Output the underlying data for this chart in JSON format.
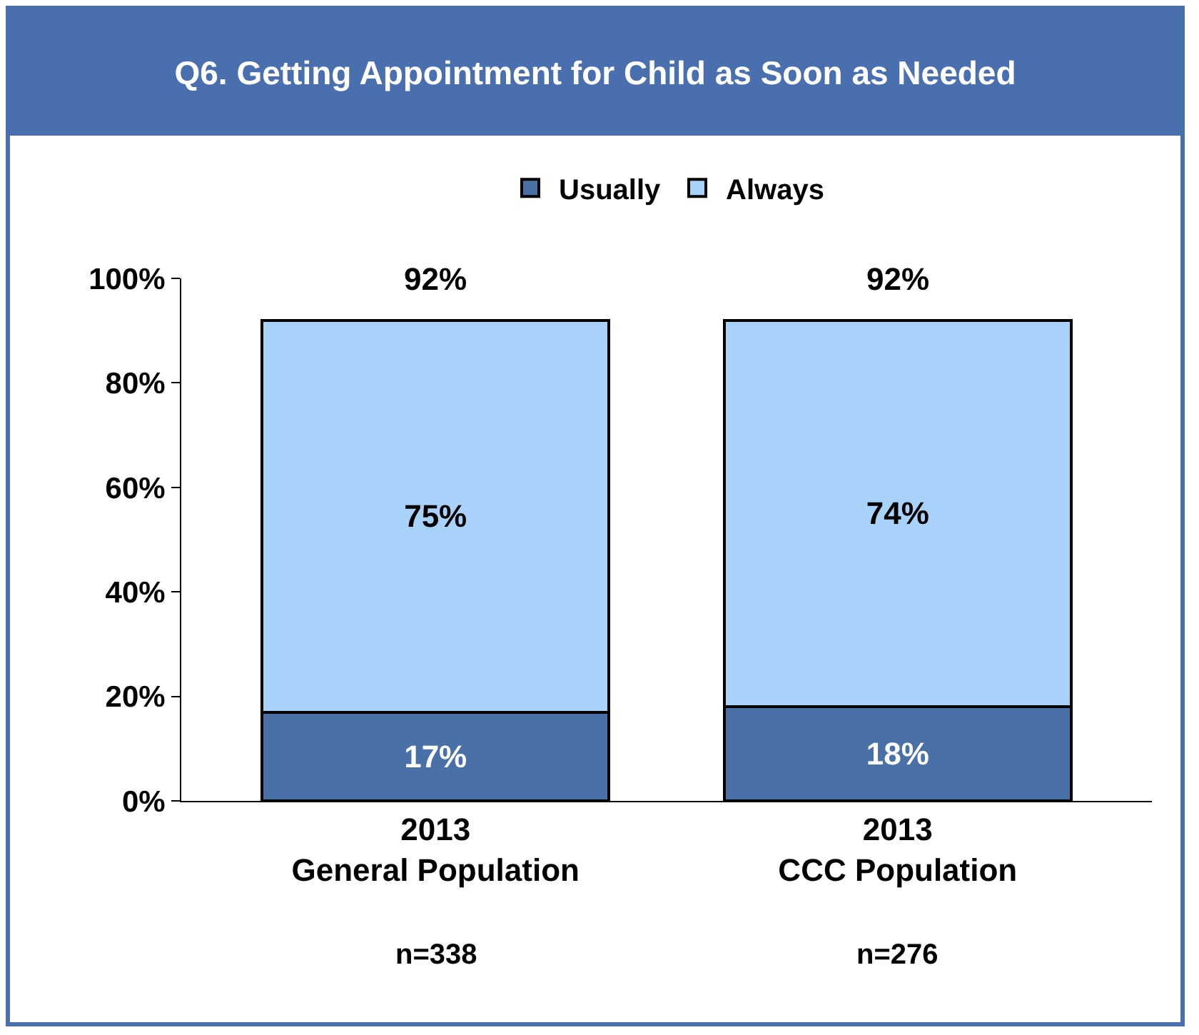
{
  "chart_data": {
    "type": "bar",
    "stacked": true,
    "title": "Q6.  Getting Appointment for Child as Soon as Needed",
    "categories": [
      "2013\nGeneral Population",
      "2013\nCCC Population"
    ],
    "series": [
      {
        "name": "Usually",
        "color": "#4a70a8",
        "values": [
          17,
          18
        ],
        "value_labels": [
          "17%",
          "18%"
        ]
      },
      {
        "name": "Always",
        "color": "#a9d2fa",
        "values": [
          75,
          74
        ],
        "value_labels": [
          "75%",
          "74%"
        ]
      }
    ],
    "totals": [
      "92%",
      "92%"
    ],
    "ylim": [
      0,
      100
    ],
    "yticks": [
      {
        "value": 0,
        "label": "0%"
      },
      {
        "value": 20,
        "label": "20%"
      },
      {
        "value": 40,
        "label": "40%"
      },
      {
        "value": 60,
        "label": "60%"
      },
      {
        "value": 80,
        "label": "80%"
      },
      {
        "value": 100,
        "label": "100%"
      }
    ],
    "grid": false,
    "legend": "top",
    "annotations": [
      "n=338",
      "n=276"
    ]
  }
}
